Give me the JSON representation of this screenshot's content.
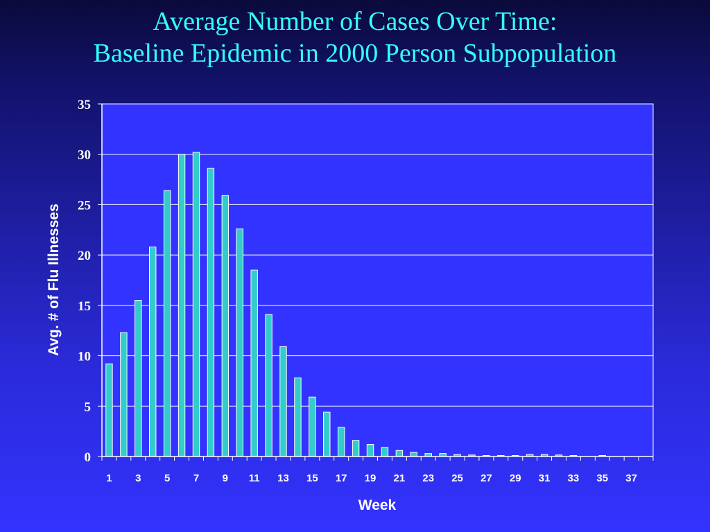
{
  "title": {
    "line1": "Average Number of Cases Over Time:",
    "line2": "Baseline Epidemic in 2000 Person Subpopulation"
  },
  "colors": {
    "title": "#33ffff",
    "bar_fill": "#33cccc",
    "bar_stroke": "#ffffff",
    "plot_background": "#3333ff",
    "grid": "#ffffff",
    "text": "#ffffff"
  },
  "chart_data": {
    "type": "bar",
    "title": "Average Number of Cases Over Time: Baseline Epidemic in 2000 Person Subpopulation",
    "xlabel": "Week",
    "ylabel": "Avg. # of Flu Illnesses",
    "ylim": [
      0,
      35
    ],
    "yticks": [
      0,
      5,
      10,
      15,
      20,
      25,
      30,
      35
    ],
    "grid": true,
    "legend": "none",
    "categories": [
      1,
      2,
      3,
      4,
      5,
      6,
      7,
      8,
      9,
      10,
      11,
      12,
      13,
      14,
      15,
      16,
      17,
      18,
      19,
      20,
      21,
      22,
      23,
      24,
      25,
      26,
      27,
      28,
      29,
      30,
      31,
      32,
      33,
      34,
      35,
      36,
      37,
      38
    ],
    "xtick_labels": [
      "1",
      "3",
      "5",
      "7",
      "9",
      "11",
      "13",
      "15",
      "17",
      "19",
      "21",
      "23",
      "25",
      "27",
      "29",
      "31",
      "33",
      "35",
      "37"
    ],
    "values": [
      9.2,
      12.3,
      15.5,
      20.8,
      26.4,
      30.0,
      30.2,
      28.6,
      25.9,
      22.6,
      18.5,
      14.1,
      10.9,
      7.8,
      5.9,
      4.4,
      2.9,
      1.6,
      1.2,
      0.9,
      0.6,
      0.4,
      0.3,
      0.3,
      0.2,
      0.15,
      0.1,
      0.1,
      0.1,
      0.2,
      0.2,
      0.15,
      0.1,
      0.0,
      0.1,
      0.0,
      0.0,
      0.0
    ]
  }
}
